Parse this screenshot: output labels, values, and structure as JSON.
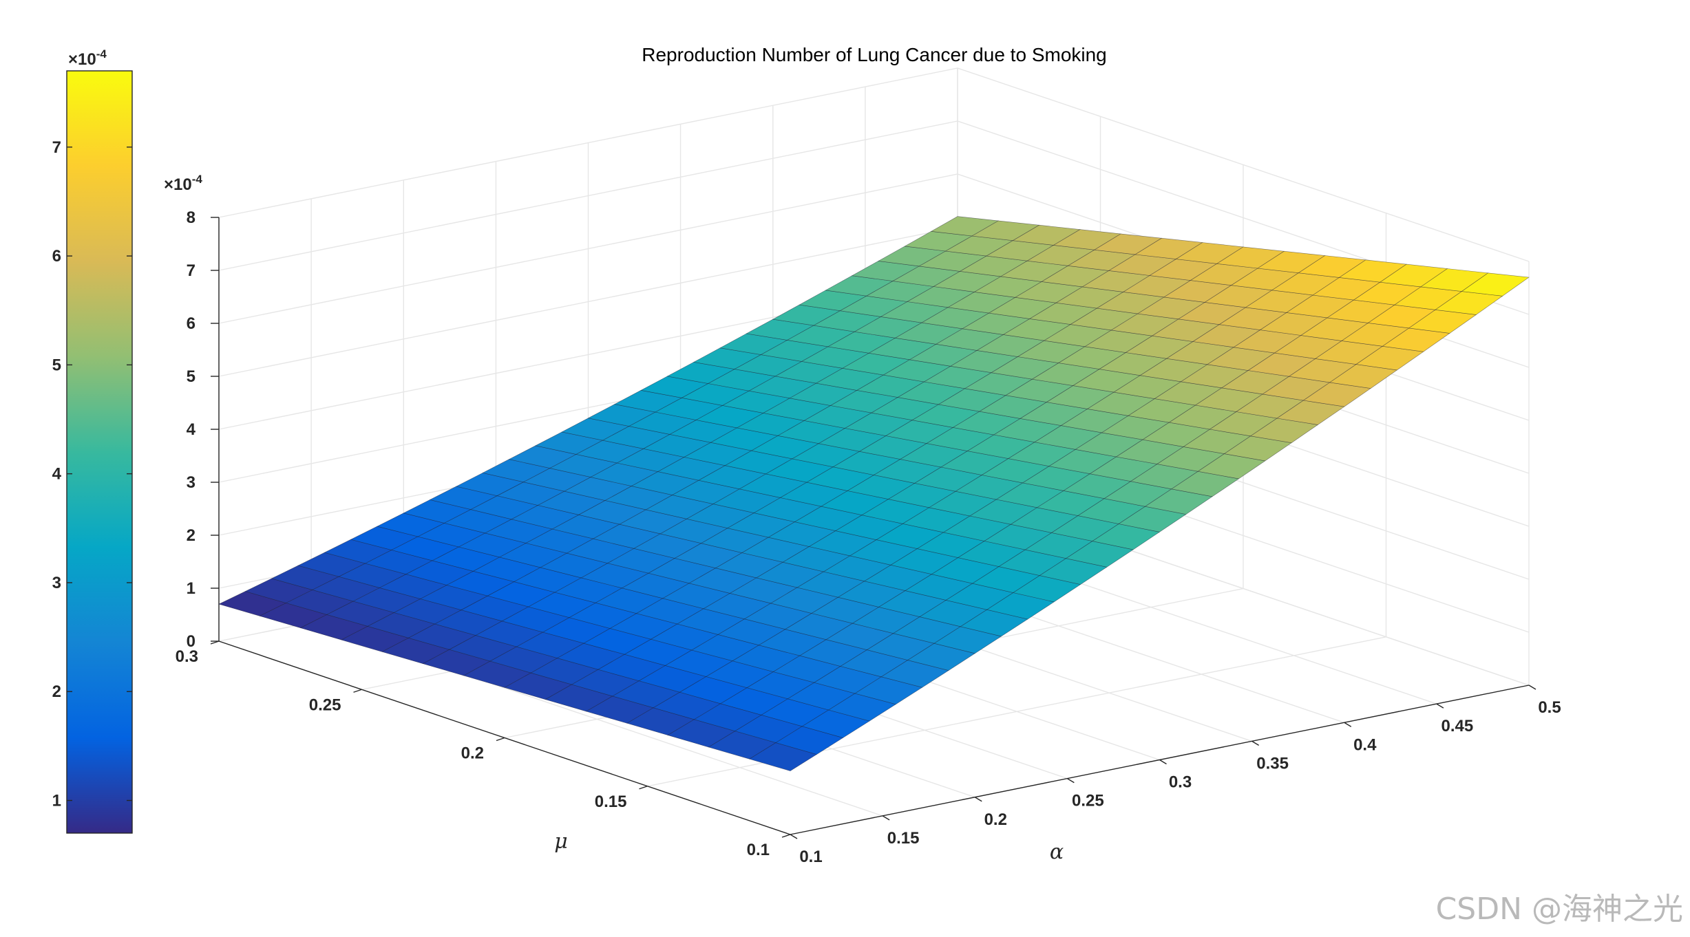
{
  "chart_data": {
    "type": "surface",
    "title": "Reproduction Number of Lung Cancer due to Smoking",
    "xlabel": "α",
    "ylabel": "μ",
    "zlabel": "",
    "x_ticks": [
      "0.1",
      "0.15",
      "0.2",
      "0.25",
      "0.3",
      "0.35",
      "0.4",
      "0.45",
      "0.5"
    ],
    "y_ticks": [
      "0.1",
      "0.15",
      "0.2",
      "0.25",
      "0.3"
    ],
    "z_ticks": [
      "0",
      "1",
      "2",
      "3",
      "4",
      "5",
      "6",
      "7",
      "8"
    ],
    "z_exponent": "-4",
    "xlim": [
      0.1,
      0.5
    ],
    "ylim": [
      0.1,
      0.3
    ],
    "zlim": [
      0,
      8
    ],
    "grid": true,
    "colormap": "parula",
    "colorbar": {
      "placement": "left",
      "ticks": [
        "1",
        "2",
        "3",
        "4",
        "5",
        "6",
        "7"
      ],
      "exponent": "-4",
      "range": [
        0.7,
        7.7
      ]
    },
    "surface_corners": [
      {
        "alpha": 0.1,
        "mu": 0.3,
        "value": 0.7
      },
      {
        "alpha": 0.1,
        "mu": 0.1,
        "value": 1.2
      },
      {
        "alpha": 0.5,
        "mu": 0.3,
        "value": 5.2
      },
      {
        "alpha": 0.5,
        "mu": 0.1,
        "value": 7.7
      }
    ],
    "colors": {
      "parula": [
        "#352A87",
        "#0363E1",
        "#1485D4",
        "#06A7C6",
        "#38B99E",
        "#92BF73",
        "#D9BA56",
        "#FCCE2E",
        "#F9FB0E"
      ]
    }
  },
  "watermark": "CSDN @海神之光"
}
